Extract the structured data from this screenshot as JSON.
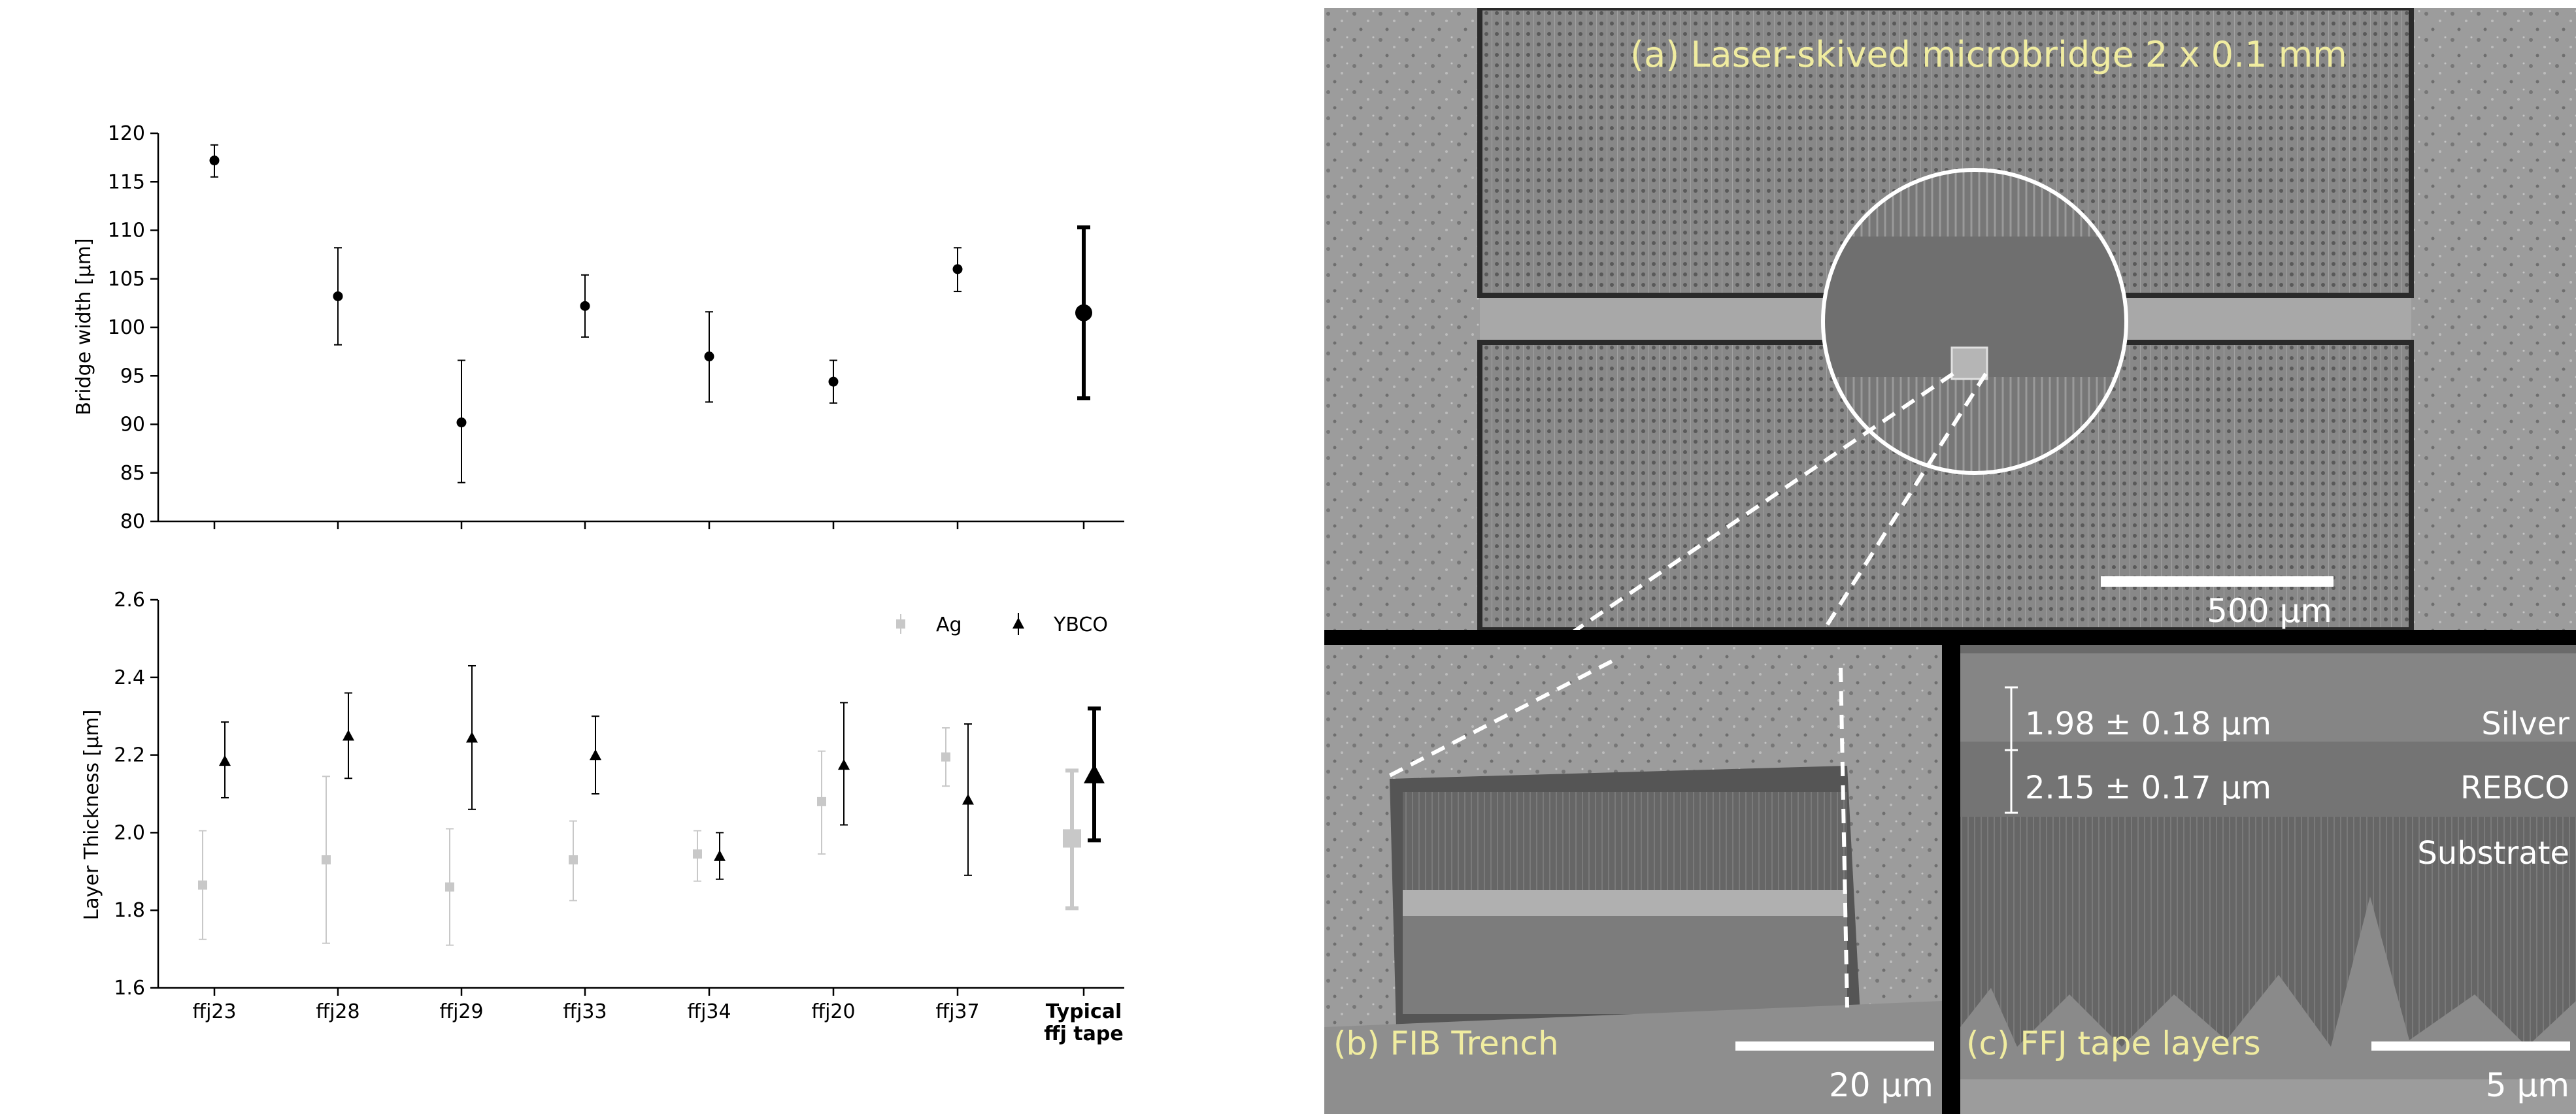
{
  "chart_data": [
    {
      "type": "scatter",
      "ylabel": "Bridge width [μm]",
      "ylim": [
        80,
        120
      ],
      "yticks": [
        80,
        85,
        90,
        95,
        100,
        105,
        110,
        115,
        120
      ],
      "categories": [
        "ffj23",
        "ffj28",
        "ffj29",
        "ffj33",
        "ffj34",
        "ffj20",
        "ffj37",
        "Typical ffj tape"
      ],
      "series": [
        {
          "marker": "circle",
          "color": "#000000",
          "values": [
            117.2,
            103.2,
            90.2,
            102.2,
            97.0,
            94.4,
            106.0,
            101.5
          ],
          "err_low": [
            115.5,
            98.2,
            84.0,
            99.0,
            92.3,
            92.2,
            103.7,
            92.7
          ],
          "err_high": [
            118.8,
            108.2,
            96.6,
            105.4,
            101.6,
            96.6,
            108.2,
            110.3
          ]
        }
      ]
    },
    {
      "type": "scatter",
      "ylabel": "Layer Thickness [μm]",
      "ylim": [
        1.6,
        2.6
      ],
      "yticks": [
        "1.6",
        "1.8",
        "2.0",
        "2.2",
        "2.4",
        "2.6"
      ],
      "categories": [
        "ffj23",
        "ffj28",
        "ffj29",
        "ffj33",
        "ffj34",
        "ffj20",
        "ffj37",
        "Typical ffj tape"
      ],
      "legend_position": "top-right",
      "series": [
        {
          "name": "Ag",
          "marker": "square",
          "color": "#c8c8c8",
          "values": [
            1.865,
            1.93,
            1.86,
            1.93,
            1.945,
            2.08,
            2.195,
            1.985
          ],
          "err_low": [
            1.725,
            1.715,
            1.71,
            1.825,
            1.875,
            1.945,
            2.12,
            1.805
          ],
          "err_high": [
            2.005,
            2.145,
            2.01,
            2.03,
            2.005,
            2.21,
            2.27,
            2.16
          ]
        },
        {
          "name": "YBCO",
          "marker": "triangle",
          "color": "#000000",
          "values": [
            2.185,
            2.25,
            2.245,
            2.2,
            1.94,
            2.175,
            2.085,
            2.15
          ],
          "err_low": [
            2.09,
            2.14,
            2.06,
            2.1,
            1.88,
            2.02,
            1.89,
            1.98
          ],
          "err_high": [
            2.285,
            2.36,
            2.43,
            2.3,
            2.0,
            2.335,
            2.28,
            2.32
          ]
        }
      ]
    }
  ],
  "micrographs": {
    "panel_a": {
      "caption": "(a) Laser-skived microbridge 2 x 0.1 mm",
      "scale_label": "500 µm"
    },
    "panel_b": {
      "caption": "(b) FIB Trench",
      "scale_label": "20 µm"
    },
    "panel_c": {
      "caption": "(c) FFJ tape layers",
      "scale_label": "5 µm",
      "silver_thickness": "1.98 ± 0.18 µm",
      "rebco_thickness": "2.15 ± 0.17 µm",
      "layer_silver": "Silver",
      "layer_rebco": "REBCO",
      "layer_substrate": "Substrate"
    },
    "caption_color": "#f0eca0"
  }
}
